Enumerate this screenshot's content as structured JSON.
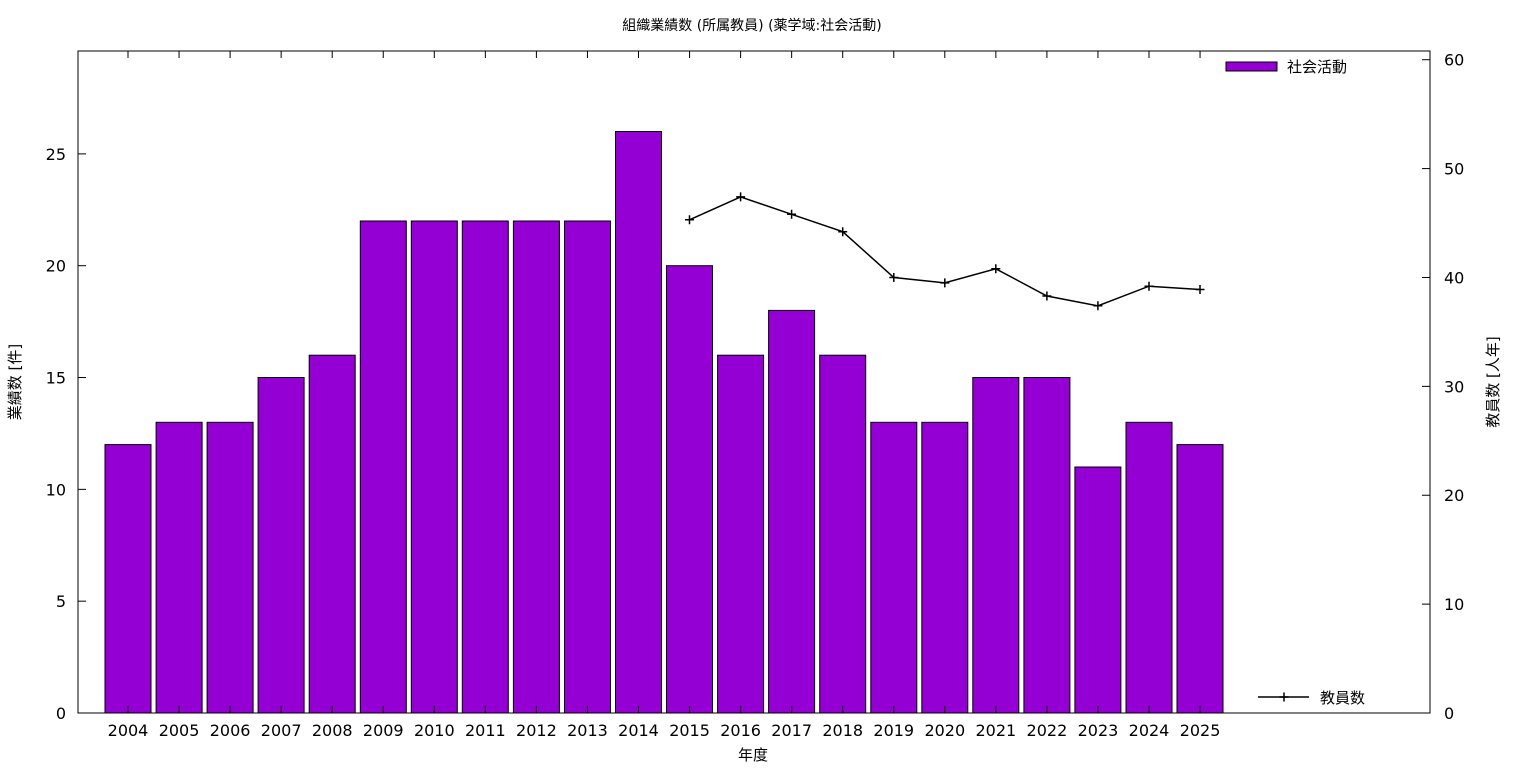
{
  "chart_data": {
    "type": "bar",
    "title": "組織業績数 (所属教員) (薬学域:社会活動)",
    "xlabel": "年度",
    "ylabel": "業績数 [件]",
    "y2label": "教員数 [人年]",
    "categories": [
      "2004",
      "2005",
      "2006",
      "2007",
      "2008",
      "2009",
      "2010",
      "2011",
      "2012",
      "2013",
      "2014",
      "2015",
      "2016",
      "2017",
      "2018",
      "2019",
      "2020",
      "2021",
      "2022",
      "2023",
      "2024",
      "2025"
    ],
    "ylim": [
      0,
      29.6
    ],
    "y2lim": [
      0,
      60.8
    ],
    "yticks": [
      0,
      5,
      10,
      15,
      20,
      25
    ],
    "y2ticks": [
      0,
      10,
      20,
      30,
      40,
      50,
      60
    ],
    "grid": false,
    "series": [
      {
        "name": "社会活動",
        "type": "bar",
        "axis": "left",
        "color": "#9400d3",
        "values": [
          12,
          13,
          13,
          15,
          16,
          22,
          22,
          22,
          22,
          22,
          26,
          20,
          16,
          18,
          16,
          13,
          13,
          15,
          15,
          11,
          13,
          12
        ]
      },
      {
        "name": "教員数",
        "type": "line",
        "axis": "right",
        "color": "#000000",
        "marker": "plus",
        "values": [
          null,
          null,
          null,
          null,
          null,
          null,
          null,
          null,
          null,
          null,
          null,
          45.3,
          47.4,
          45.8,
          44.2,
          40.0,
          39.5,
          40.8,
          38.3,
          37.4,
          39.2,
          38.9
        ]
      }
    ],
    "legend": [
      {
        "label": "社会活動",
        "position": "top-right"
      },
      {
        "label": "教員数",
        "position": "bottom-right"
      }
    ]
  }
}
